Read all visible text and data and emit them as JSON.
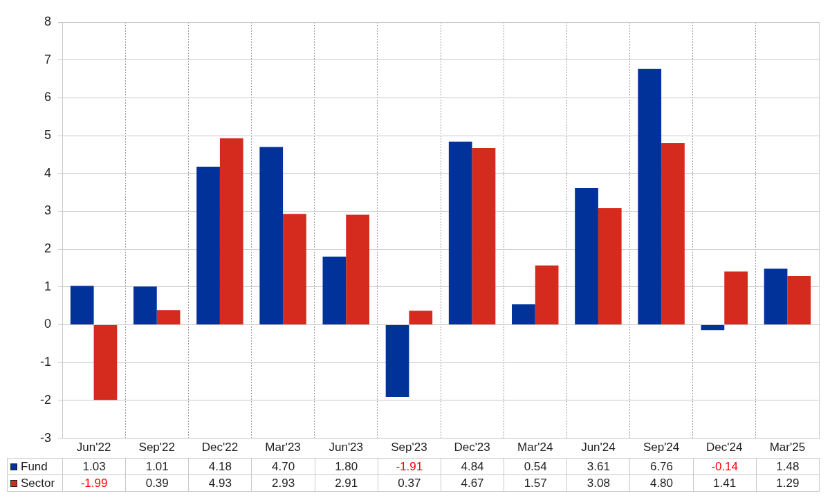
{
  "chart_data": {
    "type": "bar",
    "categories": [
      "Jun'22",
      "Sep'22",
      "Dec'22",
      "Mar'23",
      "Jun'23",
      "Sep'23",
      "Dec'23",
      "Mar'24",
      "Jun'24",
      "Sep'24",
      "Dec'24",
      "Mar'25"
    ],
    "series": [
      {
        "name": "Fund",
        "color": "#003299",
        "values": [
          1.03,
          1.01,
          4.18,
          4.7,
          1.8,
          -1.91,
          4.84,
          0.54,
          3.61,
          6.76,
          -0.14,
          1.48
        ],
        "value_labels": [
          "1.03",
          "1.01",
          "4.18",
          "4.70",
          "1.80",
          "-1.91",
          "4.84",
          "0.54",
          "3.61",
          "6.76",
          "-0.14",
          "1.48"
        ]
      },
      {
        "name": "Sector",
        "color": "#d52b1e",
        "values": [
          -1.99,
          0.39,
          4.93,
          2.93,
          2.91,
          0.37,
          4.67,
          1.57,
          3.08,
          4.8,
          1.41,
          1.29
        ],
        "value_labels": [
          "-1.99",
          "0.39",
          "4.93",
          "2.93",
          "2.91",
          "0.37",
          "4.67",
          "1.57",
          "3.08",
          "4.80",
          "1.41",
          "1.29"
        ]
      }
    ],
    "ylim": [
      -3,
      8
    ],
    "yticks": [
      -3,
      -2,
      -1,
      0,
      1,
      2,
      3,
      4,
      5,
      6,
      7,
      8
    ],
    "grid": true,
    "legend": "bottom left"
  }
}
